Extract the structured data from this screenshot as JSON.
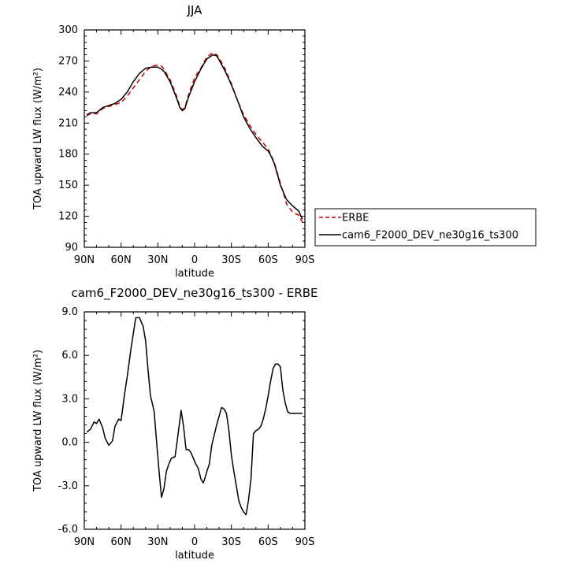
{
  "chart_data": [
    {
      "type": "line",
      "title": "JJA",
      "xlabel": "latitude",
      "ylabel": "TOA upward LW flux (W/m²)",
      "xlim": [
        90,
        -90
      ],
      "ylim": [
        90,
        300
      ],
      "xticks": [
        90,
        60,
        30,
        0,
        -30,
        -60,
        -90
      ],
      "xtick_labels": [
        "90N",
        "60N",
        "30N",
        "0",
        "30S",
        "60S",
        "90S"
      ],
      "yticks": [
        90,
        120,
        150,
        180,
        210,
        240,
        270,
        300
      ],
      "ytick_labels": [
        "90",
        "120",
        "150",
        "180",
        "210",
        "240",
        "270",
        "300"
      ],
      "legend_position": "right",
      "series": [
        {
          "name": "ERBE",
          "color": "#cc0000",
          "dash": "dashed",
          "x": [
            88,
            85,
            80,
            75,
            70,
            65,
            60,
            55,
            50,
            45,
            40,
            35,
            30,
            27,
            25,
            20,
            15,
            12,
            10,
            8,
            5,
            0,
            -5,
            -10,
            -15,
            -18,
            -20,
            -25,
            -30,
            -35,
            -40,
            -45,
            -50,
            -55,
            -60,
            -62,
            -65,
            -70,
            -75,
            -80,
            -85,
            -88
          ],
          "y": [
            217,
            219,
            219,
            224,
            226,
            228,
            230,
            236,
            244,
            252,
            260,
            265,
            266,
            265,
            262,
            252,
            237,
            226,
            223,
            225,
            237,
            254,
            263,
            274,
            278,
            276,
            273,
            262,
            248,
            232,
            218,
            208,
            199,
            192,
            185,
            180,
            172,
            152,
            132,
            124,
            121,
            114
          ]
        },
        {
          "name": "cam6_F2000_DEV_ne30g16_ts300",
          "color": "#000000",
          "dash": "solid",
          "x": [
            88,
            85,
            80,
            75,
            70,
            65,
            60,
            55,
            50,
            45,
            40,
            35,
            30,
            27,
            25,
            20,
            15,
            12,
            10,
            8,
            5,
            0,
            -5,
            -10,
            -15,
            -18,
            -20,
            -25,
            -30,
            -35,
            -40,
            -45,
            -50,
            -55,
            -60,
            -62,
            -65,
            -70,
            -75,
            -80,
            -85,
            -88
          ],
          "y": [
            218,
            220,
            220,
            225,
            227,
            229,
            233,
            240,
            250,
            258,
            263,
            264,
            264,
            262,
            260,
            250,
            235,
            225,
            222,
            224,
            235,
            250,
            262,
            272,
            276,
            275,
            271,
            260,
            247,
            232,
            216,
            205,
            196,
            188,
            183,
            179,
            171,
            150,
            136,
            130,
            125,
            117
          ]
        }
      ]
    },
    {
      "type": "line",
      "title": "cam6_F2000_DEV_ne30g16_ts300 - ERBE",
      "xlabel": "latitude",
      "ylabel": "TOA upward LW flux (W/m²)",
      "xlim": [
        90,
        -90
      ],
      "ylim": [
        -6,
        9
      ],
      "xticks": [
        90,
        60,
        30,
        0,
        -30,
        -60,
        -90
      ],
      "xtick_labels": [
        "90N",
        "60N",
        "30N",
        "0",
        "30S",
        "60S",
        "90S"
      ],
      "yticks": [
        -6,
        -3,
        0,
        3,
        6,
        9
      ],
      "ytick_labels": [
        "-6.0",
        "-3.0",
        "0.0",
        "3.0",
        "6.0",
        "9.0"
      ],
      "series": [
        {
          "color": "#000000",
          "dash": "solid",
          "x": [
            88,
            85,
            82,
            80,
            78,
            75,
            73,
            70,
            67,
            65,
            62,
            60,
            57,
            55,
            52,
            48,
            45,
            42,
            40,
            38,
            36,
            34,
            33,
            31,
            29,
            27,
            25,
            23,
            21,
            19,
            16,
            15,
            13,
            11,
            9,
            7,
            5,
            3,
            1,
            -1,
            -3,
            -5,
            -7,
            -8,
            -10,
            -12,
            -14,
            -16,
            -18,
            -20,
            -22,
            -24,
            -26,
            -28,
            -30,
            -32,
            -34,
            -36,
            -38,
            -40,
            -42,
            -44,
            -46,
            -48,
            -50,
            -52,
            -54,
            -56,
            -58,
            -60,
            -62,
            -64,
            -66,
            -68,
            -70,
            -72,
            -74,
            -76,
            -78,
            -80,
            -82,
            -84,
            -86,
            -88
          ],
          "y": [
            0.7,
            0.9,
            1.4,
            1.3,
            1.6,
            1.0,
            0.3,
            -0.2,
            0.1,
            1.1,
            1.6,
            1.5,
            3.4,
            4.5,
            6.4,
            8.6,
            8.6,
            8.0,
            7.0,
            5.0,
            3.2,
            2.5,
            2.1,
            0.0,
            -2.0,
            -3.8,
            -3.2,
            -2.0,
            -1.5,
            -1.1,
            -1.0,
            -0.4,
            0.9,
            2.2,
            1.1,
            -0.5,
            -0.5,
            -0.7,
            -1.1,
            -1.5,
            -1.8,
            -2.5,
            -2.8,
            -2.6,
            -2.0,
            -1.5,
            -0.2,
            0.5,
            1.2,
            1.8,
            2.4,
            2.3,
            2.0,
            0.8,
            -0.9,
            -2.0,
            -3.0,
            -4.0,
            -4.5,
            -4.8,
            -5.0,
            -4.0,
            -2.5,
            0.6,
            0.8,
            0.9,
            1.1,
            1.6,
            2.3,
            3.2,
            4.2,
            5.1,
            5.4,
            5.4,
            5.2,
            3.6,
            2.7,
            2.1,
            2.0,
            2.0,
            2.0,
            2.0,
            2.0,
            2.0
          ]
        }
      ]
    }
  ]
}
